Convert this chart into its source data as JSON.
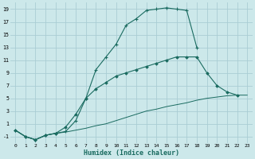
{
  "xlabel": "Humidex (Indice chaleur)",
  "bg_color": "#cce8ea",
  "grid_color": "#aacdd4",
  "line_color": "#1a6b60",
  "xlim": [
    -0.5,
    23.5
  ],
  "ylim": [
    -2,
    20
  ],
  "yticks": [
    -1,
    1,
    3,
    5,
    7,
    9,
    11,
    13,
    15,
    17,
    19
  ],
  "xticks": [
    0,
    1,
    2,
    3,
    4,
    5,
    6,
    7,
    8,
    9,
    10,
    11,
    12,
    13,
    14,
    15,
    16,
    17,
    18,
    19,
    20,
    21,
    22,
    23
  ],
  "line1_x": [
    0,
    1,
    2,
    3,
    4,
    5,
    6,
    7,
    8,
    9,
    10,
    11,
    12,
    13,
    14,
    15,
    16,
    17,
    18
  ],
  "line1_y": [
    0,
    -1,
    -1.5,
    -0.8,
    -0.5,
    -0.2,
    1.5,
    5.0,
    9.5,
    11.5,
    13.5,
    16.5,
    17.5,
    18.8,
    19.0,
    19.2,
    19.0,
    18.8,
    13.0
  ],
  "line2_x": [
    0,
    1,
    2,
    3,
    4,
    5,
    6,
    7,
    8,
    9,
    10,
    11,
    12,
    13,
    14,
    15,
    16,
    17,
    18,
    19,
    20,
    21,
    22
  ],
  "line2_y": [
    0,
    -1,
    -1.5,
    -0.8,
    -0.5,
    0.5,
    2.5,
    5.0,
    6.5,
    7.5,
    8.5,
    9.0,
    9.5,
    10.0,
    10.5,
    11.0,
    11.5,
    11.5,
    11.5,
    9.0,
    7.0,
    6.0,
    5.5
  ],
  "line3_x": [
    0,
    1,
    2,
    3,
    4,
    5,
    6,
    7,
    8,
    9,
    10,
    11,
    12,
    13,
    14,
    15,
    16,
    17,
    18,
    19,
    20,
    21,
    22,
    23
  ],
  "line3_y": [
    0,
    -1,
    -1.5,
    -0.8,
    -0.5,
    -0.3,
    0.0,
    0.3,
    0.7,
    1.0,
    1.5,
    2.0,
    2.5,
    3.0,
    3.3,
    3.7,
    4.0,
    4.3,
    4.7,
    5.0,
    5.2,
    5.4,
    5.5,
    5.5
  ]
}
